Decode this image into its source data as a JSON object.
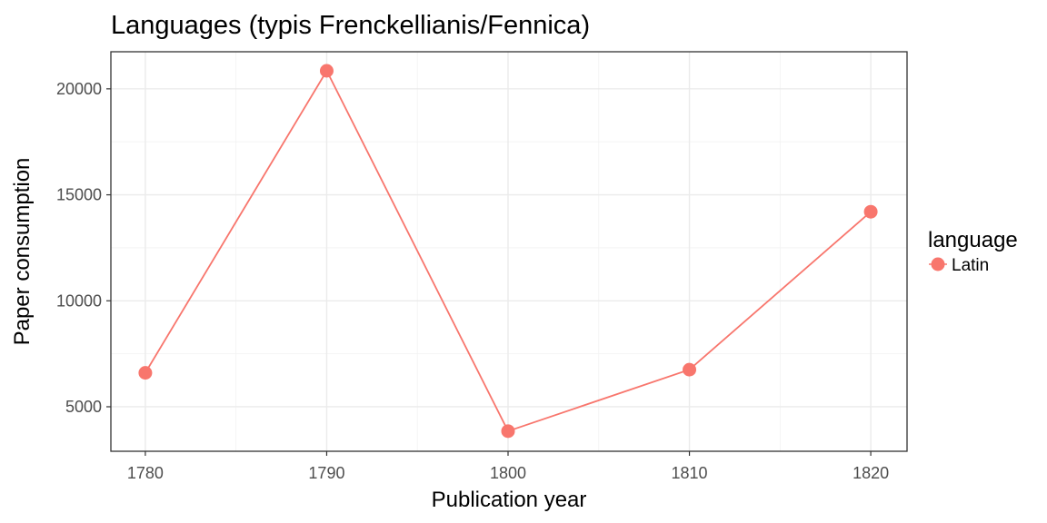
{
  "chart_data": {
    "type": "line",
    "title": "Languages (typis Frenckellianis/Fennica)",
    "xlabel": "Publication year",
    "ylabel": "Paper consumption",
    "x": [
      1780,
      1790,
      1800,
      1810,
      1820
    ],
    "series": [
      {
        "name": "Latin",
        "color": "#F8766D",
        "values": [
          6600,
          20850,
          3850,
          6750,
          14200
        ]
      }
    ],
    "xlim": [
      1778.1,
      1822.0
    ],
    "ylim": [
      2900,
      21750
    ],
    "x_ticks": [
      1780,
      1790,
      1800,
      1810,
      1820
    ],
    "x_tick_labels": [
      "1780",
      "1790",
      "1800",
      "1810",
      "1820"
    ],
    "y_ticks": [
      5000,
      10000,
      15000,
      20000
    ],
    "y_tick_labels": [
      "5000",
      "10000",
      "15000",
      "20000"
    ],
    "legend": {
      "title": "language",
      "position": "right"
    },
    "grid": true
  }
}
